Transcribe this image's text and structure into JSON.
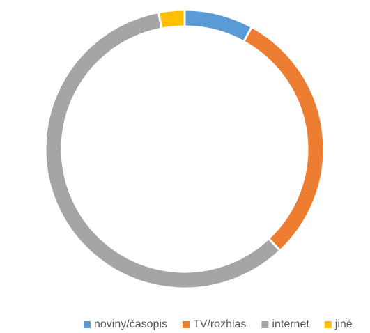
{
  "chart_data": {
    "type": "donut",
    "categories": [
      "noviny/časopis",
      "TV/rozhlas",
      "internet",
      "jiné"
    ],
    "values": [
      8,
      30,
      59,
      3
    ],
    "colors": [
      "#5b9bd5",
      "#ed7d31",
      "#a5a5a5",
      "#ffc000"
    ],
    "legend": "bottom"
  }
}
